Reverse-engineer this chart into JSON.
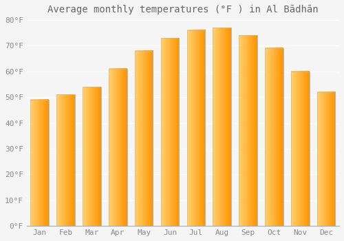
{
  "title": "Average monthly temperatures (°F ) in Al Bādhān",
  "months": [
    "Jan",
    "Feb",
    "Mar",
    "Apr",
    "May",
    "Jun",
    "Jul",
    "Aug",
    "Sep",
    "Oct",
    "Nov",
    "Dec"
  ],
  "values": [
    49,
    51,
    54,
    61,
    68,
    73,
    76,
    77,
    74,
    69,
    60,
    52
  ],
  "bar_color_main": "#FFA500",
  "bar_color_light": "#FFD070",
  "ylim": [
    0,
    80
  ],
  "yticks": [
    0,
    10,
    20,
    30,
    40,
    50,
    60,
    70,
    80
  ],
  "ytick_labels": [
    "0°F",
    "10°F",
    "20°F",
    "30°F",
    "40°F",
    "50°F",
    "60°F",
    "70°F",
    "80°F"
  ],
  "background_color": "#f5f5f5",
  "grid_color": "#ffffff",
  "title_fontsize": 10,
  "tick_fontsize": 8,
  "bar_edge_color": "#bbbbbb",
  "bar_width": 0.7
}
